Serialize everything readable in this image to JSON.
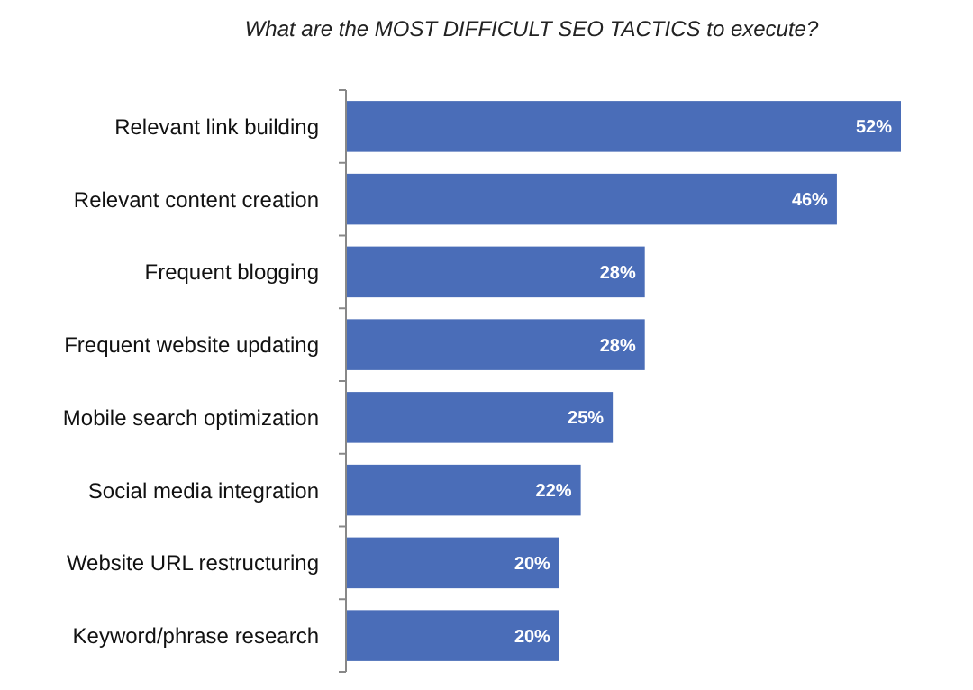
{
  "chart_data": {
    "type": "bar",
    "orientation": "horizontal",
    "title": "What are the MOST DIFFICULT SEO TACTICS to execute?",
    "categories": [
      "Relevant link building",
      "Relevant content creation",
      "Frequent blogging",
      "Frequent website updating",
      "Mobile search optimization",
      "Social media integration",
      "Website URL restructuring",
      "Keyword/phrase research"
    ],
    "values": [
      52,
      46,
      28,
      28,
      25,
      22,
      20,
      20
    ],
    "value_labels": [
      "52%",
      "46%",
      "28%",
      "28%",
      "25%",
      "22%",
      "20%",
      "20%"
    ],
    "color": "#4a6db8"
  }
}
